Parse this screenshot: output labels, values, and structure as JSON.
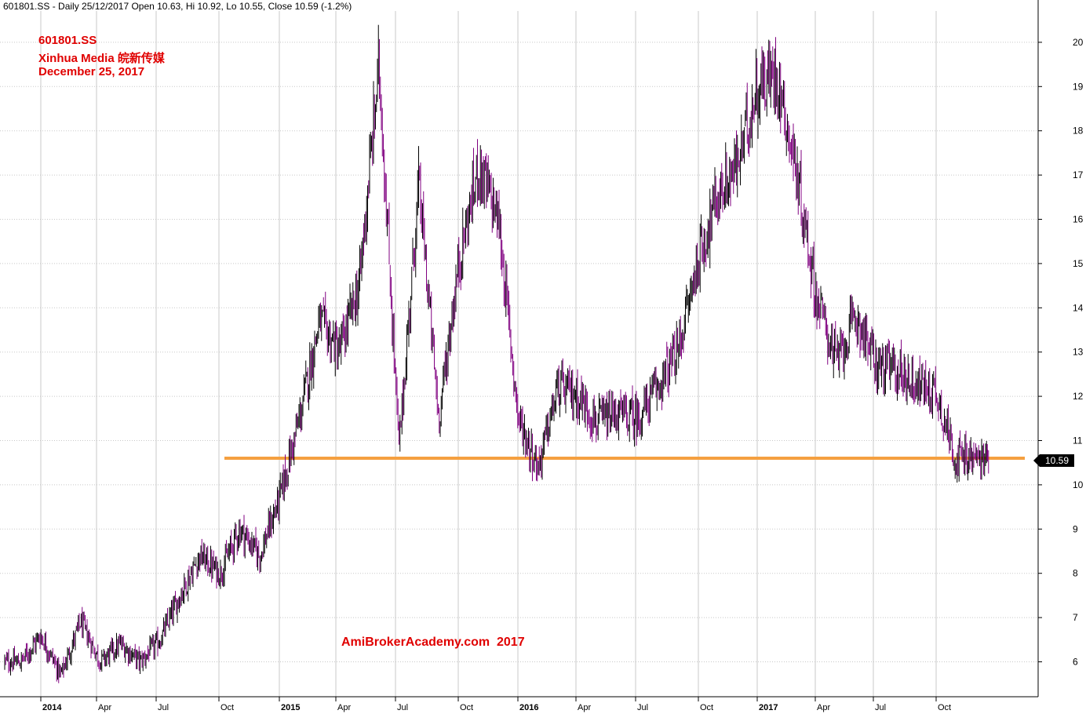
{
  "header": {
    "text": "601801.SS - Daily 25/12/2017 Open 10.63, Hi 10.92, Lo 10.55, Close 10.59 (-1.2%)"
  },
  "annotation": {
    "line1": "601801.SS",
    "line2": "Xinhua Media 皖新传媒",
    "line3": "December 25, 2017"
  },
  "watermark": "AmiBrokerAcademy.com  2017",
  "last_price_label": "10.59",
  "colors": {
    "up": "#000000",
    "down": "#800080",
    "support_line": "#f5a040",
    "text_red": "#e00000",
    "grid": "#c8c8c8"
  },
  "chart_data": {
    "type": "candlestick",
    "y_ticks": [
      6,
      7,
      8,
      9,
      10,
      11,
      12,
      13,
      14,
      15,
      16,
      17,
      18,
      19,
      20
    ],
    "ylim": [
      5.2,
      20.8
    ],
    "x_ticks": [
      {
        "label": "2014",
        "bold": true
      },
      {
        "label": "Apr",
        "bold": false
      },
      {
        "label": "Jul",
        "bold": false
      },
      {
        "label": "Oct",
        "bold": false
      },
      {
        "label": "2015",
        "bold": true
      },
      {
        "label": "Apr",
        "bold": false
      },
      {
        "label": "Jul",
        "bold": false
      },
      {
        "label": "Oct",
        "bold": false
      },
      {
        "label": "2016",
        "bold": true
      },
      {
        "label": "Apr",
        "bold": false
      },
      {
        "label": "Jul",
        "bold": false
      },
      {
        "label": "Oct",
        "bold": false
      },
      {
        "label": "2017",
        "bold": true
      },
      {
        "label": "Apr",
        "bold": false
      },
      {
        "label": "Jul",
        "bold": false
      },
      {
        "label": "Oct",
        "bold": false
      }
    ],
    "support_level": {
      "value": 10.6,
      "start": "Oct 2014",
      "end": "Dec 2017"
    },
    "last_close": 10.59,
    "period": {
      "start": "Dec 2013",
      "end": "Dec 25, 2017"
    },
    "trend_points": [
      [
        "Dec 2013",
        6.0
      ],
      [
        "Jan 2014",
        6.6
      ],
      [
        "Feb 2014",
        5.7
      ],
      [
        "Mar 2014",
        6.9
      ],
      [
        "Apr 2014",
        6.0
      ],
      [
        "May 2014",
        6.4
      ],
      [
        "Jun 2014",
        6.0
      ],
      [
        "Jul 2014",
        6.5
      ],
      [
        "Aug 2014",
        7.5
      ],
      [
        "Sep 2014",
        8.4
      ],
      [
        "Oct 2014",
        8.0
      ],
      [
        "Nov 2014",
        9.0
      ],
      [
        "Dec 2014",
        8.4
      ],
      [
        "Jan 2015",
        9.7
      ],
      [
        "Feb 2015",
        11.5
      ],
      [
        "Mar 2015",
        13.7
      ],
      [
        "Apr 2015",
        13.0
      ],
      [
        "May 2015",
        14.5
      ],
      [
        "Jun 2015",
        19.5
      ],
      [
        "Jul 2015",
        10.8
      ],
      [
        "Aug 2015",
        16.8
      ],
      [
        "Sep 2015",
        11.5
      ],
      [
        "Oct 2015",
        15.0
      ],
      [
        "Nov 2015",
        17.2
      ],
      [
        "Dec 2015",
        16.0
      ],
      [
        "Jan 2016",
        11.5
      ],
      [
        "Feb 2016",
        10.4
      ],
      [
        "Mar 2016",
        12.2
      ],
      [
        "Apr 2016",
        12.0
      ],
      [
        "May 2016",
        11.4
      ],
      [
        "Jun 2016",
        11.6
      ],
      [
        "Jul 2016",
        11.5
      ],
      [
        "Aug 2016",
        12.2
      ],
      [
        "Sep 2016",
        13.0
      ],
      [
        "Oct 2016",
        15.0
      ],
      [
        "Nov 2016",
        16.5
      ],
      [
        "Dec 2016",
        17.2
      ],
      [
        "Jan 2017",
        19.0
      ],
      [
        "Feb 2017",
        19.3
      ],
      [
        "Mar 2017",
        17.0
      ],
      [
        "Apr 2017",
        14.2
      ],
      [
        "May 2017",
        12.8
      ],
      [
        "Jun 2017",
        13.8
      ],
      [
        "Jul 2017",
        12.7
      ],
      [
        "Aug 2017",
        12.6
      ],
      [
        "Sep 2017",
        12.3
      ],
      [
        "Oct 2017",
        12.1
      ],
      [
        "Nov 2017",
        10.6
      ],
      [
        "Dec 2017",
        10.59
      ]
    ]
  }
}
